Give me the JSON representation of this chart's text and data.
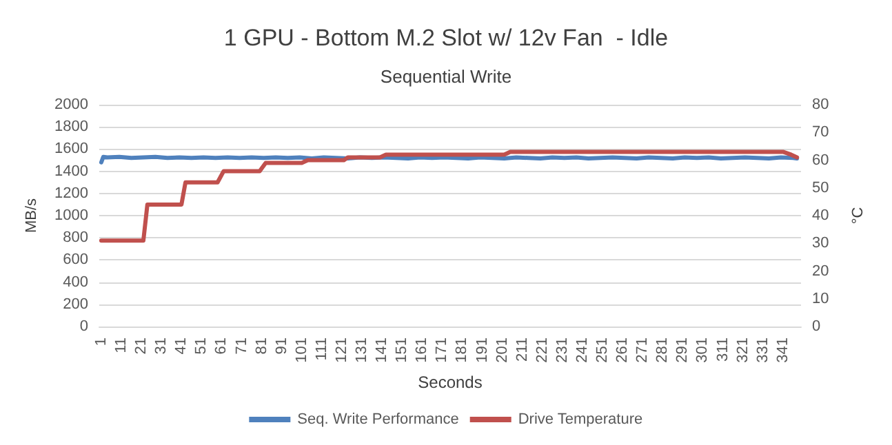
{
  "chart_data": {
    "type": "line",
    "title": "1 GPU - Bottom M.2 Slot w/ 12v Fan  - Idle",
    "subtitle": "Sequential Write",
    "xlabel": "Seconds",
    "ylabel": "MB/s",
    "y2label": "°C",
    "xlim": [
      0,
      350
    ],
    "xticks": [
      1,
      11,
      21,
      31,
      41,
      51,
      61,
      71,
      81,
      91,
      101,
      111,
      121,
      131,
      141,
      151,
      161,
      171,
      181,
      191,
      201,
      211,
      221,
      231,
      241,
      251,
      261,
      271,
      281,
      291,
      301,
      311,
      321,
      331,
      341
    ],
    "ylim": [
      0,
      2000
    ],
    "yticks": [
      0,
      200,
      400,
      600,
      800,
      1000,
      1200,
      1400,
      1600,
      1800,
      2000
    ],
    "y2lim": [
      0,
      80
    ],
    "y2ticks": [
      0,
      10,
      20,
      30,
      40,
      50,
      60,
      70,
      80
    ],
    "grid": "y",
    "legend": "bottom",
    "marker": "none",
    "line_style": "solid",
    "series": [
      {
        "name": "Seq. Write Performance",
        "color": "#4f81bd",
        "x": [
          1,
          2,
          4,
          10,
          16,
          22,
          28,
          34,
          40,
          46,
          52,
          58,
          64,
          70,
          76,
          82,
          88,
          94,
          100,
          106,
          112,
          118,
          124,
          130,
          136,
          142,
          148,
          154,
          160,
          166,
          172,
          178,
          184,
          190,
          196,
          202,
          208,
          214,
          220,
          226,
          232,
          238,
          244,
          250,
          256,
          262,
          268,
          274,
          280,
          286,
          292,
          298,
          304,
          310,
          316,
          322,
          328,
          334,
          340,
          346,
          348
        ],
        "values": [
          1480,
          1530,
          1525,
          1530,
          1520,
          1525,
          1530,
          1520,
          1525,
          1520,
          1525,
          1520,
          1525,
          1520,
          1525,
          1520,
          1525,
          1520,
          1525,
          1515,
          1525,
          1520,
          1515,
          1525,
          1520,
          1525,
          1520,
          1515,
          1525,
          1520,
          1525,
          1520,
          1515,
          1525,
          1520,
          1515,
          1525,
          1520,
          1515,
          1525,
          1520,
          1525,
          1515,
          1520,
          1525,
          1520,
          1515,
          1525,
          1520,
          1515,
          1525,
          1520,
          1525,
          1515,
          1520,
          1525,
          1520,
          1515,
          1525,
          1520,
          1515
        ]
      },
      {
        "name": "Drive Temperature",
        "color": "#c0504d",
        "axis": "y2",
        "x": [
          1,
          22,
          24,
          41,
          43,
          59,
          62,
          80,
          83,
          101,
          104,
          122,
          124,
          140,
          143,
          202,
          205,
          341,
          345,
          348
        ],
        "values": [
          31,
          31,
          44,
          44,
          52,
          52,
          56,
          56,
          59,
          59,
          60,
          60,
          61,
          61,
          62,
          62,
          63,
          63,
          62,
          61
        ]
      }
    ]
  }
}
